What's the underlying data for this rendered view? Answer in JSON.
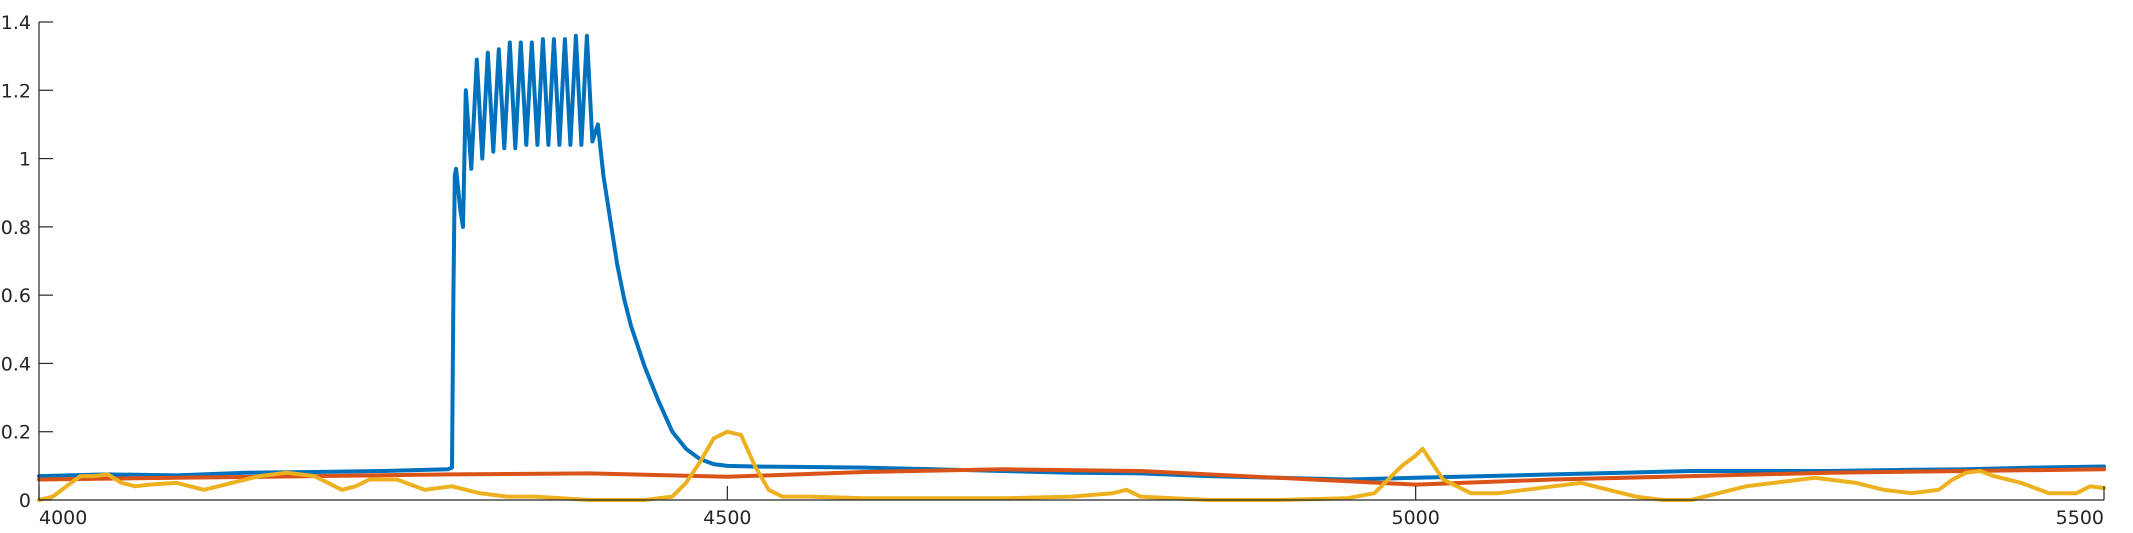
{
  "chart_data": {
    "type": "line",
    "title": "",
    "xlabel": "",
    "ylabel": "",
    "xlim": [
      4000,
      5500
    ],
    "ylim": [
      0,
      1.4
    ],
    "grid": false,
    "legend": "none",
    "x_ticks": [
      {
        "value": 4000,
        "label": "4000"
      },
      {
        "value": 4500,
        "label": "4500"
      },
      {
        "value": 5000,
        "label": "5000"
      },
      {
        "value": 5500,
        "label": "5500"
      }
    ],
    "y_ticks": [
      {
        "value": 0,
        "label": "0"
      },
      {
        "value": 0.2,
        "label": "0.2"
      },
      {
        "value": 0.4,
        "label": "0.4"
      },
      {
        "value": 0.6,
        "label": "0.6"
      },
      {
        "value": 0.8,
        "label": "0.8"
      },
      {
        "value": 1.0,
        "label": "1"
      },
      {
        "value": 1.2,
        "label": "1.2"
      },
      {
        "value": 1.4,
        "label": "1.4"
      }
    ],
    "series": [
      {
        "color": "#0072BD",
        "x": [
          4000,
          4050,
          4100,
          4150,
          4200,
          4250,
          4297,
          4300,
          4301,
          4302,
          4303,
          4306,
          4308,
          4310,
          4314,
          4318,
          4322,
          4326,
          4330,
          4334,
          4338,
          4342,
          4346,
          4350,
          4354,
          4358,
          4362,
          4366,
          4370,
          4374,
          4378,
          4382,
          4386,
          4390,
          4394,
          4398,
          4402,
          4406,
          4410,
          4415,
          4420,
          4425,
          4430,
          4440,
          4450,
          4460,
          4470,
          4480,
          4490,
          4500,
          4520,
          4550,
          4600,
          4650,
          4700,
          4750,
          4800,
          4850,
          4900,
          4950,
          5000,
          5050,
          5100,
          5150,
          5200,
          5250,
          5300,
          5350,
          5400,
          5450,
          5500
        ],
        "y": [
          0.07,
          0.075,
          0.072,
          0.08,
          0.082,
          0.085,
          0.09,
          0.095,
          0.6,
          0.95,
          0.97,
          0.85,
          0.8,
          1.2,
          0.97,
          1.29,
          1.0,
          1.31,
          1.02,
          1.32,
          1.03,
          1.34,
          1.03,
          1.34,
          1.04,
          1.34,
          1.04,
          1.35,
          1.04,
          1.35,
          1.04,
          1.35,
          1.04,
          1.36,
          1.04,
          1.36,
          1.05,
          1.1,
          0.95,
          0.82,
          0.69,
          0.59,
          0.51,
          0.39,
          0.29,
          0.2,
          0.15,
          0.12,
          0.105,
          0.1,
          0.098,
          0.097,
          0.095,
          0.09,
          0.085,
          0.08,
          0.078,
          0.07,
          0.065,
          0.06,
          0.065,
          0.07,
          0.075,
          0.08,
          0.085,
          0.085,
          0.085,
          0.088,
          0.09,
          0.095,
          0.098
        ]
      },
      {
        "color": "#D95319",
        "x": [
          4000,
          4100,
          4200,
          4300,
          4400,
          4500,
          4600,
          4700,
          4800,
          4900,
          5000,
          5100,
          5200,
          5300,
          5400,
          5500
        ],
        "y": [
          0.06,
          0.065,
          0.07,
          0.075,
          0.078,
          0.068,
          0.082,
          0.09,
          0.085,
          0.065,
          0.045,
          0.06,
          0.07,
          0.08,
          0.085,
          0.09
        ]
      },
      {
        "color": "#EDB120",
        "x": [
          4000,
          4010,
          4020,
          4030,
          4040,
          4050,
          4060,
          4070,
          4080,
          4100,
          4120,
          4140,
          4160,
          4180,
          4200,
          4220,
          4230,
          4240,
          4260,
          4280,
          4300,
          4320,
          4330,
          4340,
          4360,
          4380,
          4400,
          4420,
          4440,
          4460,
          4470,
          4480,
          4490,
          4500,
          4510,
          4520,
          4530,
          4540,
          4560,
          4600,
          4650,
          4700,
          4750,
          4780,
          4790,
          4800,
          4850,
          4900,
          4950,
          4970,
          4980,
          4990,
          5000,
          5005,
          5010,
          5020,
          5030,
          5040,
          5060,
          5080,
          5100,
          5120,
          5140,
          5160,
          5180,
          5200,
          5220,
          5240,
          5260,
          5280,
          5290,
          5300,
          5320,
          5340,
          5360,
          5380,
          5390,
          5400,
          5410,
          5420,
          5440,
          5460,
          5480,
          5490,
          5500
        ],
        "y": [
          0.0,
          0.01,
          0.04,
          0.07,
          0.07,
          0.075,
          0.05,
          0.04,
          0.045,
          0.05,
          0.03,
          0.05,
          0.07,
          0.08,
          0.07,
          0.03,
          0.04,
          0.06,
          0.06,
          0.03,
          0.04,
          0.02,
          0.015,
          0.01,
          0.01,
          0.005,
          0.0,
          0.0,
          0.0,
          0.01,
          0.05,
          0.11,
          0.18,
          0.2,
          0.19,
          0.1,
          0.03,
          0.01,
          0.01,
          0.005,
          0.005,
          0.005,
          0.01,
          0.02,
          0.03,
          0.01,
          0.0,
          0.0,
          0.005,
          0.02,
          0.06,
          0.1,
          0.13,
          0.15,
          0.12,
          0.06,
          0.04,
          0.02,
          0.02,
          0.03,
          0.04,
          0.05,
          0.03,
          0.01,
          0.0,
          0.0,
          0.02,
          0.04,
          0.05,
          0.06,
          0.065,
          0.06,
          0.05,
          0.03,
          0.02,
          0.03,
          0.06,
          0.08,
          0.085,
          0.07,
          0.05,
          0.02,
          0.02,
          0.04,
          0.035
        ]
      }
    ]
  }
}
